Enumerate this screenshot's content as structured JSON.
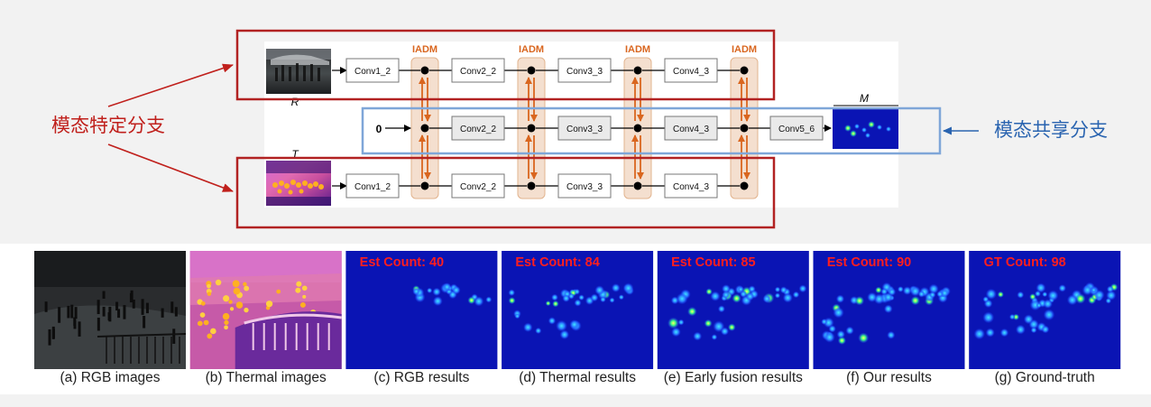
{
  "branch_labels": {
    "specific": "模态特定分支",
    "shared": "模态共享分支"
  },
  "modal_labels": {
    "rgb": "R",
    "thermal": "T",
    "output": "M"
  },
  "input_zero": "0",
  "module_name": "IADM",
  "rgb_row": [
    "Conv1_2",
    "Conv2_2",
    "Conv3_3",
    "Conv4_3"
  ],
  "shared_row": [
    "Conv2_2",
    "Conv3_3",
    "Conv4_3",
    "Conv5_6"
  ],
  "thermal_row": [
    "Conv1_2",
    "Conv2_2",
    "Conv3_3",
    "Conv4_3"
  ],
  "panels": [
    {
      "caption": "(a) RGB images",
      "overlay": ""
    },
    {
      "caption": "(b) Thermal images",
      "overlay": ""
    },
    {
      "caption": "(c) RGB results",
      "overlay": "Est Count: 40"
    },
    {
      "caption": "(d) Thermal results",
      "overlay": "Est Count: 84"
    },
    {
      "caption": "(e) Early fusion results",
      "overlay": "Est Count: 85"
    },
    {
      "caption": "(f) Our results",
      "overlay": "Est Count: 90"
    },
    {
      "caption": "(g) Ground-truth",
      "overlay": "GT Count: 98"
    }
  ],
  "colors": {
    "specific_branch": "#b22222",
    "shared_branch": "#7fa6d8",
    "iadm_fill": "#f4dfcf",
    "iadm_arrow": "#d9661f",
    "heatmap_bg": "#0a14b4",
    "count_text": "#ff1e1e"
  }
}
